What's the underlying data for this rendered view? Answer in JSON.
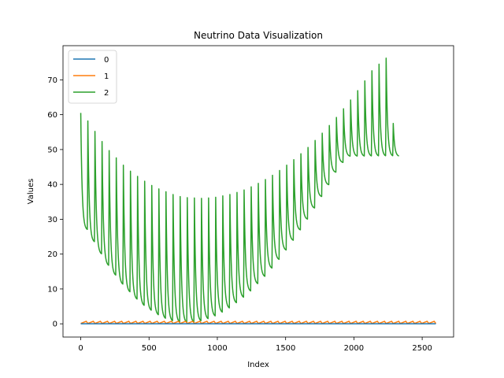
{
  "chart_data": {
    "type": "line",
    "title": "Neutrino Data Visualization",
    "xlabel": "Index",
    "ylabel": "Values",
    "xlim": [
      -130,
      2730
    ],
    "ylim": [
      -3.8,
      79.8
    ],
    "xticks": [
      0,
      500,
      1000,
      1500,
      2000,
      2500
    ],
    "yticks": [
      0,
      10,
      20,
      30,
      40,
      50,
      60,
      70
    ],
    "grid": false,
    "legend": "top-left",
    "series": [
      {
        "name": "0",
        "color": "#1f77b4",
        "x": [
          0,
          2600
        ],
        "y": [
          0,
          0
        ]
      },
      {
        "name": "1",
        "color": "#ff7f0e",
        "x": [
          0,
          2600
        ],
        "y": [
          0.1,
          0.7
        ],
        "pattern": "sawtooth oscillation between ~0.1 and ~0.7, period ~52"
      },
      {
        "name": "2",
        "color": "#2ca02c",
        "x": [
          0,
          50,
          100,
          150,
          200,
          250,
          300,
          350,
          400,
          450,
          500,
          550,
          600,
          650,
          700,
          750,
          800,
          850,
          900,
          950,
          1000,
          1050,
          1100,
          1150,
          1200,
          1250,
          1300,
          1350,
          1400,
          1450,
          1500,
          1550,
          1600,
          1650,
          1700,
          1750,
          1800,
          1850,
          1900,
          1950,
          2000,
          2050,
          2100,
          2150,
          2200,
          2250,
          2300,
          2350,
          2400,
          2450,
          2500,
          2550,
          2600
        ],
        "peaks": [
          60.5,
          58.2,
          55.2,
          52.3,
          49.7,
          47.6,
          45.5,
          43.8,
          42.3,
          40.9,
          39.7,
          38.7,
          37.9,
          37.1,
          36.5,
          36.2,
          36.1,
          36.0,
          36.1,
          36.3,
          36.7,
          37.1,
          37.7,
          38.4,
          39.3,
          40.3,
          41.4,
          42.6,
          44.0,
          45.5,
          47.1,
          48.8,
          50.6,
          52.6,
          54.7,
          56.9,
          59.2,
          61.7,
          64.2,
          66.9,
          69.7,
          72.6,
          74.5,
          76.2,
          57.5
        ],
        "troughs": [
          26.8,
          23.3,
          19.8,
          16.5,
          13.7,
          11.1,
          8.9,
          6.8,
          5.0,
          3.6,
          2.3,
          1.3,
          0.6,
          0.2,
          0.1,
          0.2,
          0.6,
          1.2,
          2.0,
          3.1,
          4.3,
          5.8,
          7.4,
          9.2,
          11.3,
          13.4,
          15.8,
          18.3,
          21.0,
          23.8,
          26.8,
          29.9,
          33.1,
          36.4,
          39.8,
          43.4,
          46.2,
          48.0
        ],
        "pattern": "sharp periodic spikes (~52 index spacing) over a parabolic envelope with minimum near index 800"
      }
    ]
  }
}
